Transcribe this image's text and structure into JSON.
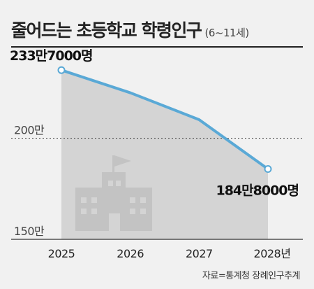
{
  "title": "줄어드는 초등학교 학령인구",
  "title_unit": "(6~11세)",
  "source": "자료=통계청 장례인구추계",
  "chart_data": {
    "type": "area",
    "title": "줄어드는 초등학교 학령인구",
    "subtitle": "(6~11세)",
    "categories": [
      "2025",
      "2026",
      "2027",
      "2028"
    ],
    "x_tick_labels": [
      "2025",
      "2026",
      "2027",
      "2028년"
    ],
    "values": [
      2337000,
      2225000,
      2092000,
      1848000
    ],
    "ylim": [
      1500000,
      2400000
    ],
    "y_gridlines": [
      {
        "value": 2000000,
        "label": "200만"
      },
      {
        "value": 1500000,
        "label": "150만"
      }
    ],
    "data_labels": [
      {
        "category": "2025",
        "text": "233만7000명"
      },
      {
        "category": "2028",
        "text": "184만8000명"
      }
    ],
    "line_color": "#5aa9d6",
    "fill_color": "#d4d4d4",
    "icon": "school-building-icon",
    "xlabel": "",
    "ylabel": ""
  }
}
